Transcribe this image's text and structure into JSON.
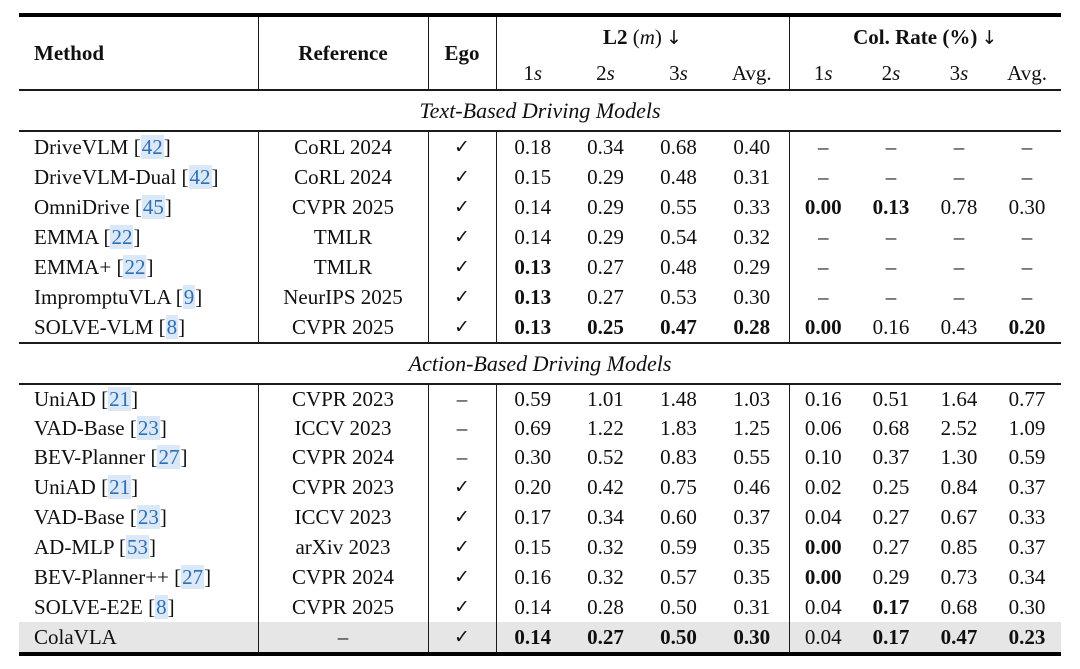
{
  "header": {
    "method": "Method",
    "reference": "Reference",
    "ego": "Ego",
    "l2": {
      "name": "L2",
      "unit": "m",
      "arrow": "↓"
    },
    "col_rate": {
      "name": "Col. Rate (%)",
      "arrow": "↓"
    },
    "subheaders": [
      {
        "t": "1",
        "i": "s"
      },
      {
        "t": "2",
        "i": "s"
      },
      {
        "t": "3",
        "i": "s"
      },
      {
        "t": "Avg.",
        "i": ""
      }
    ]
  },
  "colors": {
    "citation_blue": "#2f6fb3",
    "citation_highlight": "#dbe8f8",
    "highlight_row_bg": "#e6e6e6",
    "rule_black": "#000000"
  },
  "glyphs": {
    "check": "✓",
    "dash": "–"
  },
  "sections": [
    {
      "title": "Text-Based Driving Models",
      "rows": [
        {
          "method": "DriveVLM",
          "cite": "42",
          "reference": "CoRL 2024",
          "ego": "✓",
          "values": [
            "0.18",
            "0.34",
            "0.68",
            "0.40",
            "–",
            "–",
            "–",
            "–"
          ],
          "bold": [],
          "highlight": false
        },
        {
          "method": "DriveVLM-Dual",
          "cite": "42",
          "reference": "CoRL 2024",
          "ego": "✓",
          "values": [
            "0.15",
            "0.29",
            "0.48",
            "0.31",
            "–",
            "–",
            "–",
            "–"
          ],
          "bold": [],
          "highlight": false
        },
        {
          "method": "OmniDrive",
          "cite": "45",
          "reference": "CVPR 2025",
          "ego": "✓",
          "values": [
            "0.14",
            "0.29",
            "0.55",
            "0.33",
            "0.00",
            "0.13",
            "0.78",
            "0.30"
          ],
          "bold": [
            4,
            5
          ],
          "highlight": false
        },
        {
          "method": "EMMA",
          "cite": "22",
          "reference": "TMLR",
          "ego": "✓",
          "values": [
            "0.14",
            "0.29",
            "0.54",
            "0.32",
            "–",
            "–",
            "–",
            "–"
          ],
          "bold": [],
          "highlight": false
        },
        {
          "method": "EMMA+",
          "cite": "22",
          "reference": "TMLR",
          "ego": "✓",
          "values": [
            "0.13",
            "0.27",
            "0.48",
            "0.29",
            "–",
            "–",
            "–",
            "–"
          ],
          "bold": [
            0
          ],
          "highlight": false
        },
        {
          "method": "ImpromptuVLA",
          "cite": "9",
          "reference": "NeurIPS 2025",
          "ego": "✓",
          "values": [
            "0.13",
            "0.27",
            "0.53",
            "0.30",
            "–",
            "–",
            "–",
            "–"
          ],
          "bold": [
            0
          ],
          "highlight": false
        },
        {
          "method": "SOLVE-VLM",
          "cite": "8",
          "reference": "CVPR 2025",
          "ego": "✓",
          "values": [
            "0.13",
            "0.25",
            "0.47",
            "0.28",
            "0.00",
            "0.16",
            "0.43",
            "0.20"
          ],
          "bold": [
            0,
            1,
            2,
            3,
            4,
            7
          ],
          "highlight": false
        }
      ]
    },
    {
      "title": "Action-Based Driving Models",
      "rows": [
        {
          "method": "UniAD",
          "cite": "21",
          "reference": "CVPR 2023",
          "ego": "–",
          "values": [
            "0.59",
            "1.01",
            "1.48",
            "1.03",
            "0.16",
            "0.51",
            "1.64",
            "0.77"
          ],
          "bold": [],
          "highlight": false
        },
        {
          "method": "VAD-Base",
          "cite": "23",
          "reference": "ICCV 2023",
          "ego": "–",
          "values": [
            "0.69",
            "1.22",
            "1.83",
            "1.25",
            "0.06",
            "0.68",
            "2.52",
            "1.09"
          ],
          "bold": [],
          "highlight": false
        },
        {
          "method": "BEV-Planner",
          "cite": "27",
          "reference": "CVPR 2024",
          "ego": "–",
          "values": [
            "0.30",
            "0.52",
            "0.83",
            "0.55",
            "0.10",
            "0.37",
            "1.30",
            "0.59"
          ],
          "bold": [],
          "highlight": false
        },
        {
          "method": "UniAD",
          "cite": "21",
          "reference": "CVPR 2023",
          "ego": "✓",
          "values": [
            "0.20",
            "0.42",
            "0.75",
            "0.46",
            "0.02",
            "0.25",
            "0.84",
            "0.37"
          ],
          "bold": [],
          "highlight": false
        },
        {
          "method": "VAD-Base",
          "cite": "23",
          "reference": "ICCV 2023",
          "ego": "✓",
          "values": [
            "0.17",
            "0.34",
            "0.60",
            "0.37",
            "0.04",
            "0.27",
            "0.67",
            "0.33"
          ],
          "bold": [],
          "highlight": false
        },
        {
          "method": "AD-MLP",
          "cite": "53",
          "reference": "arXiv 2023",
          "ego": "✓",
          "values": [
            "0.15",
            "0.32",
            "0.59",
            "0.35",
            "0.00",
            "0.27",
            "0.85",
            "0.37"
          ],
          "bold": [
            4
          ],
          "highlight": false
        },
        {
          "method": "BEV-Planner++",
          "cite": "27",
          "reference": "CVPR 2024",
          "ego": "✓",
          "values": [
            "0.16",
            "0.32",
            "0.57",
            "0.35",
            "0.00",
            "0.29",
            "0.73",
            "0.34"
          ],
          "bold": [
            4
          ],
          "highlight": false
        },
        {
          "method": "SOLVE-E2E",
          "cite": "8",
          "reference": "CVPR 2025",
          "ego": "✓",
          "values": [
            "0.14",
            "0.28",
            "0.50",
            "0.31",
            "0.04",
            "0.17",
            "0.68",
            "0.30"
          ],
          "bold": [
            5
          ],
          "highlight": false
        },
        {
          "method": "ColaVLA",
          "cite": null,
          "reference": "–",
          "ego": "✓",
          "values": [
            "0.14",
            "0.27",
            "0.50",
            "0.30",
            "0.04",
            "0.17",
            "0.47",
            "0.23"
          ],
          "bold": [
            0,
            1,
            2,
            3,
            5,
            6,
            7
          ],
          "highlight": true
        }
      ]
    }
  ]
}
